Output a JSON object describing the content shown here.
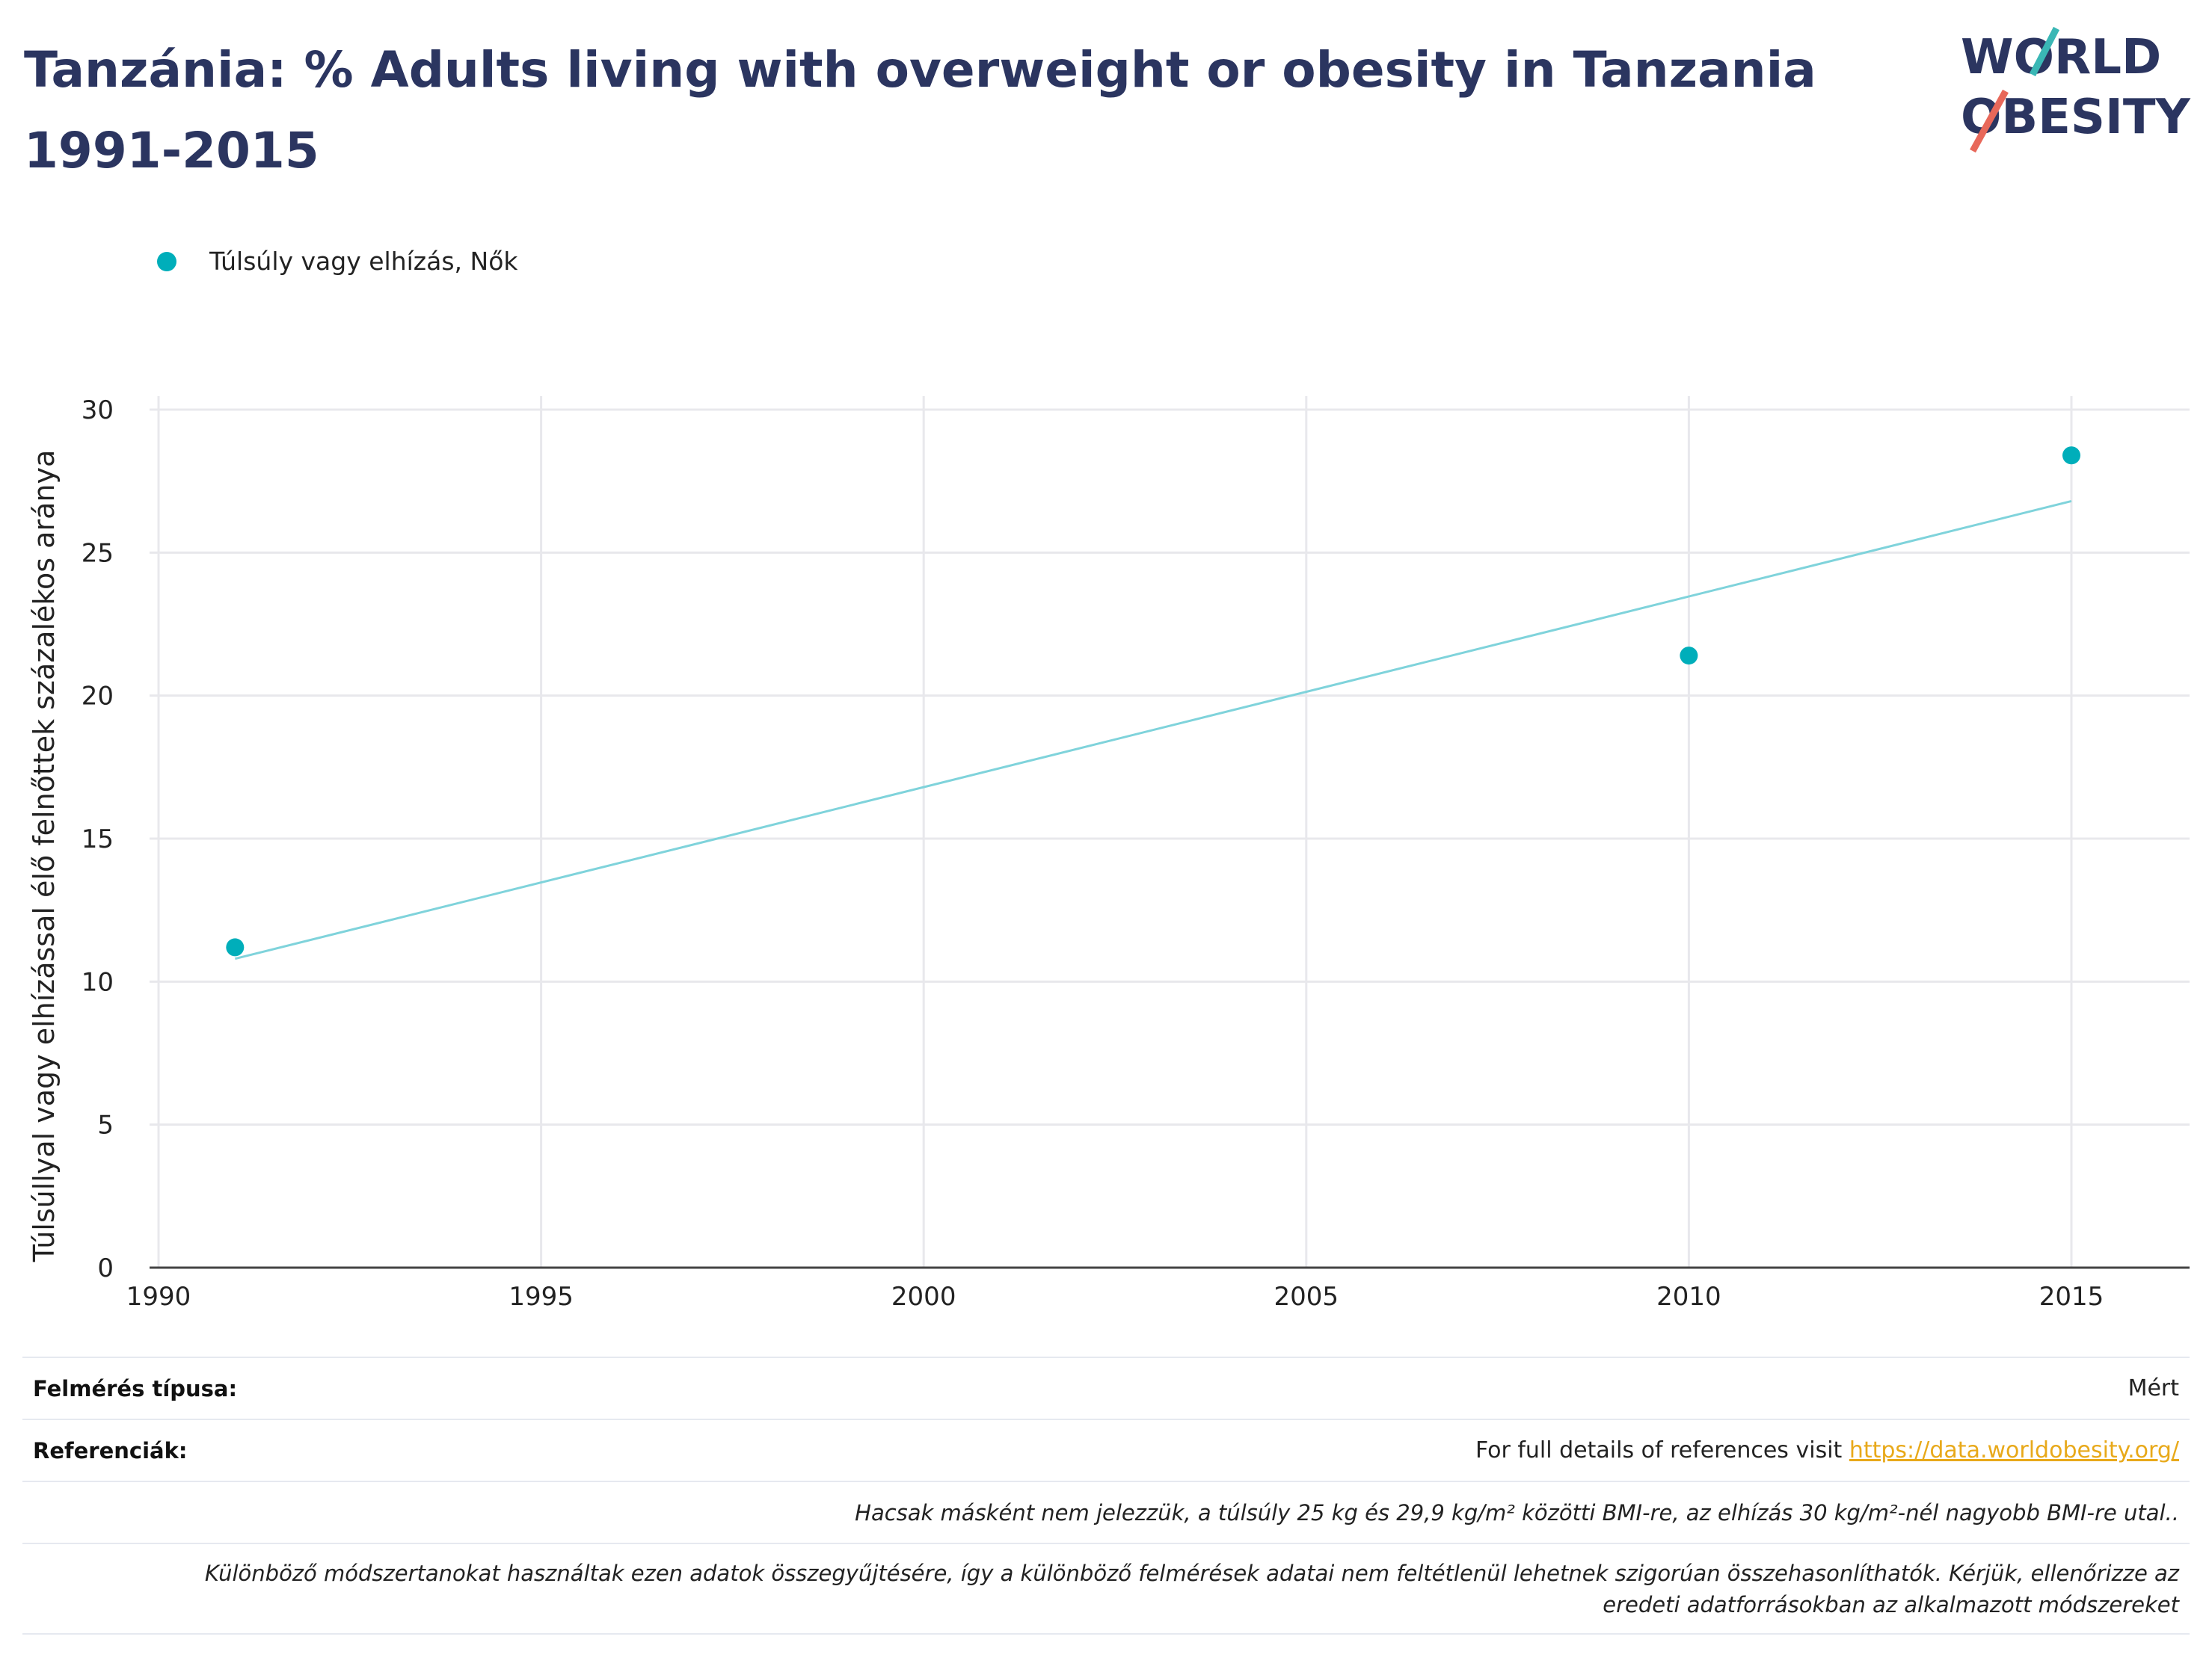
{
  "title": "Tanzánia: % Adults living with overweight or obesity in Tanzania 1991-2015",
  "logo": {
    "line1": "WORLD",
    "line2": "OBESITY"
  },
  "colors": {
    "title": "#2b3560",
    "series": "#00aeba",
    "trend": "#7fd3db",
    "link": "#e8a91a",
    "logo_teal": "#3ab7b5",
    "logo_coral": "#e8685a"
  },
  "chart_data": {
    "type": "scatter",
    "ylabel": "Túlsúllyal vagy elhízással élő felnőttek százalékos aránya",
    "xlabel": "",
    "xlim": [
      1990,
      2016.5
    ],
    "ylim": [
      0,
      30
    ],
    "x_ticks": [
      "1990",
      "1995",
      "2000",
      "2005",
      "2010",
      "2015"
    ],
    "y_ticks": [
      "0",
      "5",
      "10",
      "15",
      "20",
      "25",
      "30"
    ],
    "grid": true,
    "legend_position": "top-left",
    "series": [
      {
        "name": "Túlsúly vagy elhízás, Nők",
        "x": [
          1991,
          2010,
          2015
        ],
        "y": [
          11.2,
          21.4,
          28.4
        ]
      }
    ],
    "trendline": {
      "x": [
        1991,
        2015
      ],
      "y": [
        10.8,
        26.8
      ]
    }
  },
  "footer": {
    "survey_label": "Felmérés típusa:",
    "survey_value": "Mért",
    "refs_label": "Referenciák:",
    "refs_text": "For full details of references visit ",
    "refs_link": "https://data.worldobesity.org/",
    "note1": "Hacsak másként nem jelezzük, a túlsúly 25 kg és 29,9 kg/m² közötti BMI-re, az elhízás 30 kg/m²-nél nagyobb BMI-re utal..",
    "note2_line1": "Különböző módszertanokat használtak ezen adatok összegyűjtésére, így a különböző felmérések adatai nem feltétlenül lehetnek szigorúan összehasonlíthatók. Kérjük, ellenőrizze az",
    "note2_line2": "eredeti adatforrásokban az alkalmazott módszereket"
  }
}
